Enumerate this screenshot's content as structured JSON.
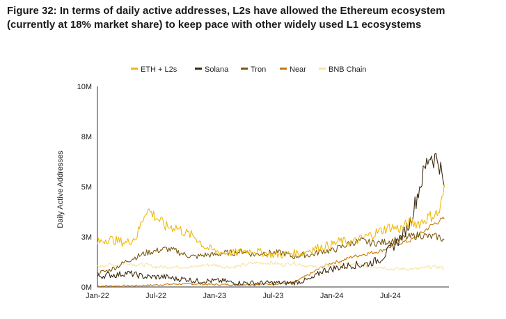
{
  "chart_data": {
    "type": "line",
    "title": "Figure 32: In terms of daily active addresses, L2s have allowed the Ethereum ecosystem (currently at 18% market share) to keep pace with other widely used L1 ecosystems",
    "xlabel": "",
    "ylabel": "Daily Active Addresses",
    "x_ticks": [
      "Jan-22",
      "Jul-22",
      "Jan-23",
      "Jul-23",
      "Jan-24",
      "Jul-24"
    ],
    "y_ticks": [
      "0M",
      "3M",
      "5M",
      "8M",
      "10M"
    ],
    "y_tick_values": [
      0,
      2.5,
      5,
      7.5,
      10
    ],
    "ylim": [
      0,
      10
    ],
    "xlim_months": [
      0,
      36
    ],
    "grid": "none",
    "legend_position": "top",
    "units": "millions of addresses",
    "series": [
      {
        "name": "ETH + L2s",
        "color": "#F0B90B",
        "points": [
          [
            0,
            2.2
          ],
          [
            1,
            2.4
          ],
          [
            2,
            2.3
          ],
          [
            3,
            2.2
          ],
          [
            4,
            2.5
          ],
          [
            5,
            3.9
          ],
          [
            6,
            3.5
          ],
          [
            7,
            3.0
          ],
          [
            8,
            3.0
          ],
          [
            9,
            2.7
          ],
          [
            10,
            2.5
          ],
          [
            11,
            2.0
          ],
          [
            12,
            1.8
          ],
          [
            13,
            1.7
          ],
          [
            14,
            1.7
          ],
          [
            15,
            1.8
          ],
          [
            16,
            1.8
          ],
          [
            17,
            1.7
          ],
          [
            18,
            1.6
          ],
          [
            19,
            1.6
          ],
          [
            20,
            1.7
          ],
          [
            21,
            1.7
          ],
          [
            22,
            1.9
          ],
          [
            23,
            2.0
          ],
          [
            24,
            2.1
          ],
          [
            25,
            2.3
          ],
          [
            26,
            2.2
          ],
          [
            27,
            2.4
          ],
          [
            28,
            2.6
          ],
          [
            29,
            2.8
          ],
          [
            30,
            3.0
          ],
          [
            31,
            2.9
          ],
          [
            32,
            3.2
          ],
          [
            33,
            3.2
          ],
          [
            34,
            3.5
          ],
          [
            35,
            3.7
          ],
          [
            35.6,
            5.0
          ]
        ]
      },
      {
        "name": "Solana",
        "color": "#3A2A0F",
        "points": [
          [
            0,
            0.5
          ],
          [
            1,
            0.6
          ],
          [
            2,
            0.6
          ],
          [
            3,
            0.7
          ],
          [
            4,
            0.6
          ],
          [
            5,
            0.5
          ],
          [
            6,
            0.5
          ],
          [
            7,
            0.5
          ],
          [
            8,
            0.4
          ],
          [
            9,
            0.4
          ],
          [
            10,
            0.3
          ],
          [
            11,
            0.3
          ],
          [
            12,
            0.3
          ],
          [
            13,
            0.3
          ],
          [
            14,
            0.2
          ],
          [
            15,
            0.2
          ],
          [
            16,
            0.2
          ],
          [
            17,
            0.2
          ],
          [
            18,
            0.2
          ],
          [
            19,
            0.2
          ],
          [
            20,
            0.2
          ],
          [
            21,
            0.3
          ],
          [
            22,
            0.4
          ],
          [
            23,
            0.8
          ],
          [
            24,
            0.9
          ],
          [
            25,
            1.0
          ],
          [
            26,
            1.1
          ],
          [
            27,
            1.1
          ],
          [
            28,
            1.2
          ],
          [
            29,
            1.4
          ],
          [
            30,
            1.9
          ],
          [
            31,
            2.4
          ],
          [
            32,
            3.2
          ],
          [
            33,
            5.0
          ],
          [
            34,
            6.6
          ],
          [
            35,
            6.3
          ],
          [
            35.6,
            4.6
          ]
        ]
      },
      {
        "name": "Tron",
        "color": "#7A5A12",
        "points": [
          [
            0,
            0.7
          ],
          [
            1,
            0.8
          ],
          [
            2,
            1.0
          ],
          [
            3,
            1.3
          ],
          [
            4,
            1.5
          ],
          [
            5,
            1.7
          ],
          [
            6,
            1.8
          ],
          [
            7,
            1.9
          ],
          [
            8,
            1.8
          ],
          [
            9,
            1.6
          ],
          [
            10,
            1.5
          ],
          [
            11,
            1.6
          ],
          [
            12,
            1.6
          ],
          [
            13,
            1.7
          ],
          [
            14,
            1.7
          ],
          [
            15,
            1.8
          ],
          [
            16,
            1.6
          ],
          [
            17,
            1.7
          ],
          [
            18,
            1.7
          ],
          [
            19,
            1.7
          ],
          [
            20,
            1.5
          ],
          [
            21,
            1.6
          ],
          [
            22,
            1.6
          ],
          [
            23,
            1.8
          ],
          [
            24,
            1.8
          ],
          [
            25,
            2.0
          ],
          [
            26,
            2.2
          ],
          [
            27,
            2.3
          ],
          [
            28,
            2.2
          ],
          [
            29,
            2.2
          ],
          [
            30,
            2.3
          ],
          [
            31,
            2.4
          ],
          [
            32,
            2.5
          ],
          [
            33,
            2.6
          ],
          [
            34,
            2.5
          ],
          [
            35,
            2.5
          ],
          [
            35.6,
            2.3
          ]
        ]
      },
      {
        "name": "Near",
        "color": "#C8780A",
        "points": [
          [
            0,
            0.05
          ],
          [
            2,
            0.05
          ],
          [
            4,
            0.06
          ],
          [
            6,
            0.1
          ],
          [
            8,
            0.15
          ],
          [
            10,
            0.15
          ],
          [
            12,
            0.12
          ],
          [
            14,
            0.12
          ],
          [
            16,
            0.12
          ],
          [
            18,
            0.15
          ],
          [
            20,
            0.2
          ],
          [
            22,
            0.7
          ],
          [
            23,
            1.0
          ],
          [
            24,
            1.2
          ],
          [
            25,
            1.3
          ],
          [
            26,
            1.5
          ],
          [
            27,
            1.6
          ],
          [
            28,
            1.7
          ],
          [
            29,
            1.8
          ],
          [
            30,
            2.0
          ],
          [
            31,
            2.2
          ],
          [
            32,
            2.3
          ],
          [
            33,
            2.6
          ],
          [
            34,
            3.0
          ],
          [
            35,
            3.3
          ],
          [
            35.6,
            3.4
          ]
        ]
      },
      {
        "name": "BNB Chain",
        "color": "#F8E3A1",
        "points": [
          [
            0,
            1.0
          ],
          [
            1,
            1.1
          ],
          [
            2,
            1.1
          ],
          [
            3,
            1.2
          ],
          [
            4,
            1.1
          ],
          [
            5,
            1.1
          ],
          [
            6,
            1.0
          ],
          [
            7,
            1.0
          ],
          [
            8,
            1.0
          ],
          [
            9,
            1.0
          ],
          [
            10,
            1.0
          ],
          [
            11,
            1.1
          ],
          [
            12,
            1.1
          ],
          [
            13,
            1.0
          ],
          [
            14,
            1.0
          ],
          [
            15,
            1.1
          ],
          [
            16,
            1.2
          ],
          [
            17,
            1.2
          ],
          [
            18,
            1.2
          ],
          [
            19,
            1.1
          ],
          [
            20,
            1.2
          ],
          [
            21,
            1.1
          ],
          [
            22,
            1.0
          ],
          [
            23,
            1.0
          ],
          [
            24,
            1.1
          ],
          [
            25,
            1.1
          ],
          [
            26,
            1.1
          ],
          [
            27,
            1.1
          ],
          [
            28,
            1.0
          ],
          [
            29,
            1.0
          ],
          [
            30,
            0.9
          ],
          [
            31,
            0.9
          ],
          [
            32,
            0.9
          ],
          [
            33,
            0.9
          ],
          [
            34,
            1.0
          ],
          [
            35,
            1.0
          ],
          [
            35.6,
            0.9
          ]
        ]
      }
    ]
  }
}
